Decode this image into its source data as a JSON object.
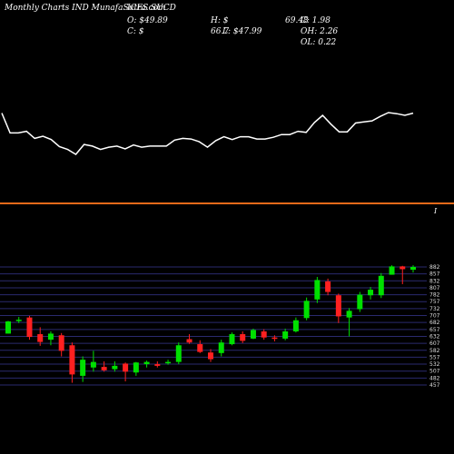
{
  "header": {
    "site": "Monthly Charts IND MunafaSutra.com",
    "ticker": "ICES SUCD",
    "o_label": "O: $49.89",
    "h_label": "H: $",
    "h_value": "69.48",
    "c_label": "C: $",
    "l_frag": "66.7",
    "l_label": "L: $47.99",
    "chg_label": "C: 1.98",
    "oh_label": "OH: 2.26",
    "ol_label": "OL: 0.22"
  },
  "divider_marker": "I",
  "colors": {
    "background": "#000000",
    "up": "#00e000",
    "down": "#ff2020",
    "line": "#ffffff",
    "divider": "#e86a1a",
    "grid": "#2a2a6e"
  },
  "chart_data": [
    {
      "type": "line",
      "title": "",
      "series": [
        {
          "values": [
            17.6,
            14.0,
            14.0,
            14.3,
            13.0,
            13.4,
            12.8,
            11.5,
            11.0,
            10.1,
            11.9,
            11.6,
            11.0,
            11.4,
            11.6,
            11.1,
            11.8,
            11.4,
            11.6,
            11.6,
            11.6,
            12.7,
            13.0,
            12.9,
            12.4,
            11.4,
            12.6,
            13.3,
            12.8,
            13.3,
            13.3,
            12.9,
            12.9,
            13.2,
            13.7,
            13.7,
            14.3,
            14.1,
            15.9,
            17.2,
            15.6,
            14.2,
            14.2,
            15.8,
            16.0,
            16.2,
            17.0,
            17.7,
            17.5,
            17.2,
            17.6
          ]
        }
      ]
    },
    {
      "type": "candlestick",
      "title": "",
      "y_ticks": [
        882,
        857,
        832,
        807,
        782,
        757,
        732,
        707,
        682,
        657,
        632,
        607,
        582,
        557,
        532,
        507,
        482,
        457
      ],
      "ylim": [
        447,
        888
      ],
      "candles": [
        [
          642,
          688,
          642,
          686
        ],
        [
          688,
          702,
          680,
          692
        ],
        [
          700,
          706,
          620,
          630
        ],
        [
          640,
          665,
          598,
          612
        ],
        [
          620,
          650,
          600,
          642
        ],
        [
          636,
          644,
          560,
          580
        ],
        [
          600,
          610,
          465,
          495
        ],
        [
          490,
          560,
          468,
          548
        ],
        [
          520,
          580,
          505,
          540
        ],
        [
          522,
          542,
          505,
          510
        ],
        [
          514,
          542,
          505,
          526
        ],
        [
          534,
          538,
          470,
          505
        ],
        [
          502,
          540,
          490,
          538
        ],
        [
          532,
          545,
          520,
          540
        ],
        [
          532,
          542,
          520,
          526
        ],
        [
          536,
          548,
          530,
          540
        ],
        [
          540,
          610,
          532,
          600
        ],
        [
          622,
          640,
          605,
          610
        ],
        [
          604,
          618,
          572,
          576
        ],
        [
          574,
          586,
          540,
          550
        ],
        [
          572,
          620,
          560,
          610
        ],
        [
          604,
          646,
          600,
          640
        ],
        [
          640,
          650,
          608,
          616
        ],
        [
          624,
          660,
          622,
          655
        ],
        [
          650,
          658,
          620,
          628
        ],
        [
          628,
          636,
          614,
          624
        ],
        [
          624,
          660,
          618,
          650
        ],
        [
          650,
          700,
          646,
          690
        ],
        [
          698,
          772,
          690,
          760
        ],
        [
          765,
          846,
          752,
          835
        ],
        [
          830,
          840,
          780,
          792
        ],
        [
          780,
          786,
          680,
          704
        ],
        [
          700,
          734,
          632,
          724
        ],
        [
          730,
          792,
          720,
          782
        ],
        [
          780,
          810,
          765,
          800
        ],
        [
          780,
          860,
          770,
          850
        ],
        [
          854,
          888,
          854,
          884
        ],
        [
          884,
          886,
          820,
          874
        ],
        [
          872,
          888,
          862,
          882
        ]
      ]
    }
  ]
}
